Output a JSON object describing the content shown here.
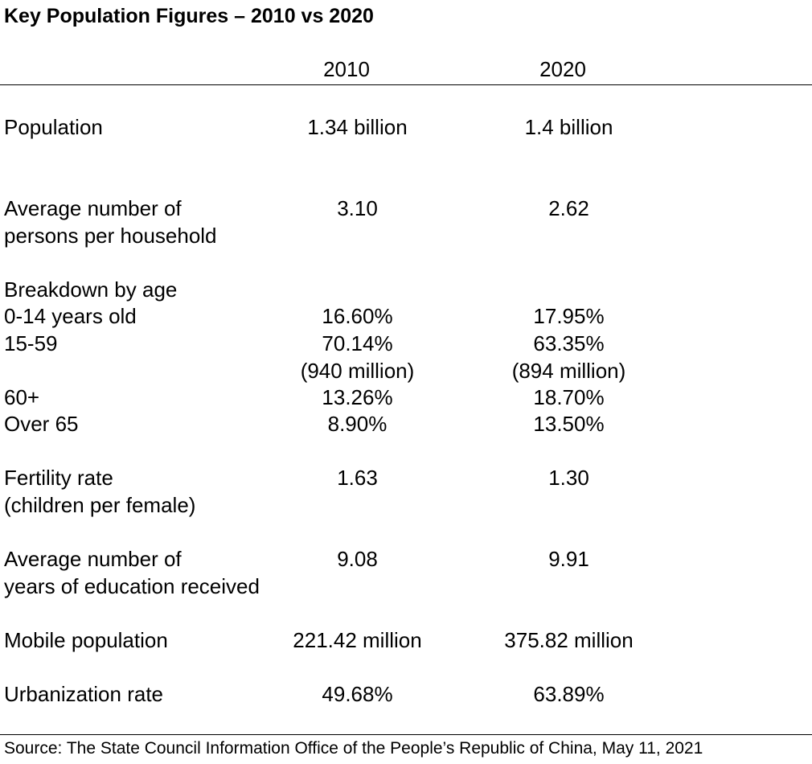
{
  "title": "Key Population Figures – 2010 vs 2020",
  "chart_data": {
    "type": "table",
    "title": "Key Population Figures – 2010 vs 2020",
    "columns": [
      "",
      "2010",
      "2020"
    ],
    "rows": [
      {
        "label": [
          "Population"
        ],
        "v2010": [
          "1.34 billion"
        ],
        "v2020": [
          "1.4 billion"
        ]
      },
      {
        "label": [
          "Average number of",
          "persons per household"
        ],
        "v2010": [
          "3.10"
        ],
        "v2020": [
          "2.62"
        ]
      },
      {
        "label": [
          "Breakdown by age"
        ],
        "v2010": [],
        "v2020": []
      },
      {
        "label": [
          "0-14 years old"
        ],
        "v2010": [
          "16.60%"
        ],
        "v2020": [
          "17.95%"
        ]
      },
      {
        "label": [
          "15-59"
        ],
        "v2010": [
          "70.14%",
          "(940 million)"
        ],
        "v2020": [
          "63.35%",
          "(894 million)"
        ]
      },
      {
        "label": [
          "60+"
        ],
        "v2010": [
          "13.26%"
        ],
        "v2020": [
          "18.70%"
        ]
      },
      {
        "label": [
          "Over 65"
        ],
        "v2010": [
          "8.90%"
        ],
        "v2020": [
          "13.50%"
        ]
      },
      {
        "label": [
          "Fertility rate",
          "(children per female)"
        ],
        "v2010": [
          "1.63"
        ],
        "v2020": [
          "1.30"
        ]
      },
      {
        "label": [
          "Average number of",
          "years of education received"
        ],
        "v2010": [
          "9.08"
        ],
        "v2020": [
          "9.91"
        ]
      },
      {
        "label": [
          "Mobile population"
        ],
        "v2010": [
          "221.42 million"
        ],
        "v2020": [
          "375.82 million"
        ]
      },
      {
        "label": [
          "Urbanization rate"
        ],
        "v2010": [
          "49.68%"
        ],
        "v2020": [
          "63.89%"
        ]
      }
    ],
    "source": "Source: The State Council Information Office of the People’s Republic of China, May 11, 2021"
  }
}
